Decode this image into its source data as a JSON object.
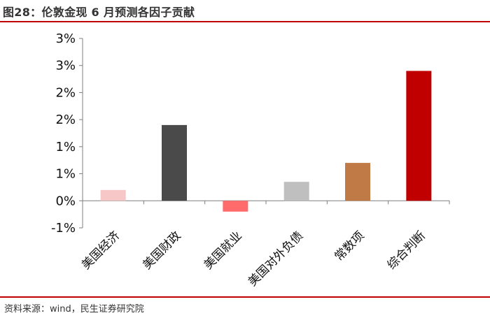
{
  "header": {
    "title": "图28：伦敦金现 6 月预测各因子贡献"
  },
  "footer": {
    "source": "资料来源：wind，民生证券研究院"
  },
  "chart_data": {
    "type": "bar",
    "title": "",
    "xlabel": "",
    "ylabel": "",
    "categories": [
      "美国经济",
      "美国财政",
      "美国就业",
      "美国对外负债",
      "常数项",
      "综合判断"
    ],
    "values": [
      0.2,
      1.4,
      -0.2,
      0.35,
      0.7,
      2.4
    ],
    "colors": [
      "#f7c6c6",
      "#4a4a4a",
      "#ff6b6b",
      "#bfbfbf",
      "#c07a45",
      "#c00000"
    ],
    "ytick_labels": [
      "-1%",
      "0%",
      "1%",
      "1%",
      "2%",
      "2%",
      "3%",
      "3%"
    ],
    "ytick_values": [
      -0.5,
      0,
      0.5,
      1.0,
      1.5,
      2.0,
      2.5,
      3.0
    ],
    "ylim": [
      -0.5,
      3.0
    ],
    "grid": false,
    "legend": "none"
  }
}
